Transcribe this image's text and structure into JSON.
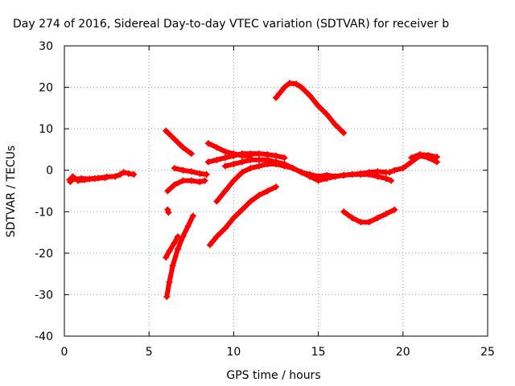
{
  "chart_data": {
    "type": "scatter",
    "title": "Day 274 of 2016, Sidereal Day-to-day VTEC variation (SDTVAR) for receiver b",
    "xlabel": "GPS time / hours",
    "ylabel": "SDTVAR / TECUs",
    "xlim": [
      0,
      25
    ],
    "ylim": [
      -40,
      30
    ],
    "xticks": [
      0,
      5,
      10,
      15,
      20,
      25
    ],
    "yticks": [
      -40,
      -30,
      -20,
      -10,
      0,
      10,
      20,
      30
    ],
    "grid": true,
    "color": "#ff0000",
    "series": [
      {
        "x": [
          0.3,
          1.0,
          1.5,
          2.0,
          2.5,
          3.0,
          3.3,
          3.5,
          3.8,
          4.1
        ],
        "y": [
          -2.3,
          -2.0,
          -2.1,
          -1.9,
          -1.6,
          -1.5,
          -1.0,
          -0.5,
          -0.8,
          -1.0
        ]
      },
      {
        "x": [
          0.35,
          0.5,
          0.8,
          1.2,
          1.8,
          2.4
        ],
        "y": [
          -2.8,
          -1.5,
          -2.5,
          -2.3,
          -2.0,
          -1.8
        ]
      },
      {
        "x": [
          6.0,
          6.5,
          7.0,
          7.5
        ],
        "y": [
          9.5,
          7.5,
          5.5,
          4.0
        ]
      },
      {
        "x": [
          6.1,
          6.5,
          7.0,
          7.5,
          8.0,
          8.3
        ],
        "y": [
          -5.0,
          -3.5,
          -2.5,
          -2.5,
          -2.8,
          -2.5
        ]
      },
      {
        "x": [
          6.5,
          7.0,
          7.5,
          8.0,
          8.4
        ],
        "y": [
          0.5,
          0.0,
          -0.3,
          -0.8,
          -1.0
        ]
      },
      {
        "x": [
          6.1,
          6.15
        ],
        "y": [
          -9.5,
          -10.2
        ]
      },
      {
        "x": [
          6.0,
          6.2,
          6.5,
          6.7
        ],
        "y": [
          -21.0,
          -19.5,
          -17.5,
          -16.0
        ]
      },
      {
        "x": [
          6.05,
          6.2,
          6.4,
          6.7,
          7.0,
          7.3,
          7.6
        ],
        "y": [
          -30.5,
          -27.0,
          -23.0,
          -19.0,
          -16.0,
          -13.5,
          -11.0
        ]
      },
      {
        "x": [
          8.5,
          9.0,
          9.5,
          10.0,
          10.5,
          11.0
        ],
        "y": [
          6.5,
          5.5,
          4.5,
          4.0,
          3.5,
          3.5
        ]
      },
      {
        "x": [
          8.5,
          9.0,
          9.5,
          10.0,
          10.5,
          11.0,
          11.5,
          12.0,
          12.5,
          13.0
        ],
        "y": [
          2.0,
          2.5,
          3.0,
          3.5,
          4.0,
          4.0,
          4.0,
          3.8,
          3.5,
          3.0
        ]
      },
      {
        "x": [
          9.5,
          10.0,
          10.5,
          11.0,
          11.5,
          12.0,
          12.5,
          13.0,
          13.5,
          14.0,
          14.5,
          15.0,
          15.5,
          16.0,
          16.5,
          17.0,
          17.5,
          18.0,
          18.5,
          19.0,
          19.3
        ],
        "y": [
          1.0,
          1.5,
          2.0,
          2.5,
          2.5,
          2.5,
          2.0,
          1.5,
          0.5,
          -0.5,
          -1.0,
          -1.5,
          -1.5,
          -1.5,
          -1.2,
          -1.0,
          -1.0,
          -1.0,
          -1.5,
          -2.0,
          -2.5
        ]
      },
      {
        "x": [
          9.0,
          9.5,
          10.0,
          10.5,
          11.0,
          11.5,
          12.0,
          12.5,
          13.0,
          13.5,
          14.0,
          14.5,
          15.0,
          15.5,
          16.0
        ],
        "y": [
          -7.5,
          -5.0,
          -2.5,
          -0.5,
          0.5,
          1.0,
          1.5,
          1.5,
          1.0,
          0.5,
          -0.5,
          -1.5,
          -2.5,
          -2.0,
          -1.5
        ]
      },
      {
        "x": [
          8.6,
          9.0,
          9.5,
          10.0,
          10.5,
          11.0,
          11.5,
          12.0,
          12.5
        ],
        "y": [
          -18.0,
          -16.0,
          -14.0,
          -11.5,
          -9.5,
          -7.5,
          -6.0,
          -5.0,
          -4.0
        ]
      },
      {
        "x": [
          12.5,
          13.0,
          13.3,
          13.7,
          14.0,
          14.5,
          15.0,
          15.5,
          16.0,
          16.5
        ],
        "y": [
          17.5,
          20.0,
          21.0,
          20.8,
          20.0,
          18.0,
          15.5,
          13.5,
          11.0,
          9.0
        ]
      },
      {
        "x": [
          14.5,
          15.0,
          15.5,
          16.0,
          16.5,
          17.0,
          17.5,
          18.0,
          18.5,
          19.0
        ],
        "y": [
          -1.5,
          -1.5,
          -1.2,
          -1.5,
          -1.2,
          -1.0,
          -0.8,
          -0.5,
          -0.3,
          -0.5
        ]
      },
      {
        "x": [
          16.5,
          17.0,
          17.5,
          18.0,
          18.5,
          19.0,
          19.5
        ],
        "y": [
          -10.0,
          -11.5,
          -12.5,
          -12.5,
          -11.5,
          -10.5,
          -9.5
        ]
      },
      {
        "x": [
          19.2,
          19.5,
          20.0,
          20.5,
          21.0,
          21.5,
          22.0
        ],
        "y": [
          -0.5,
          0.0,
          0.5,
          2.0,
          3.5,
          3.0,
          2.0
        ]
      },
      {
        "x": [
          20.5,
          21.0,
          21.5,
          22.0
        ],
        "y": [
          3.0,
          3.8,
          3.6,
          3.2
        ]
      }
    ]
  }
}
